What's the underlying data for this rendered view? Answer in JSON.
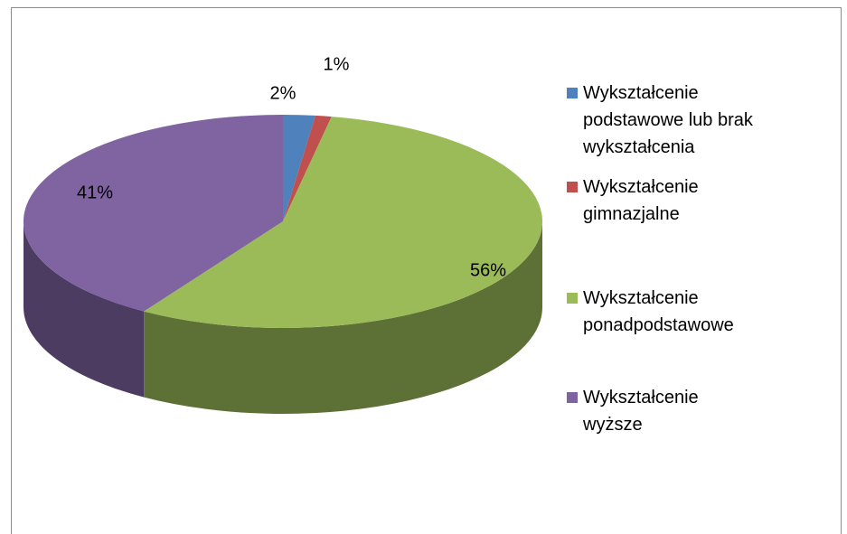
{
  "chart_data": {
    "type": "pie",
    "categories": [
      "Wykształcenie podstawowe lub brak wykształcenia",
      "Wykształcenie gimnazjalne",
      "Wykształcenie ponadpodstawowe",
      "Wykształcenie wyższe"
    ],
    "values": [
      2,
      1,
      56,
      41
    ],
    "value_labels": [
      "2%",
      "1%",
      "56%",
      "41%"
    ],
    "colors": [
      "#4f81bd",
      "#c0504d",
      "#9bbb59",
      "#8064a2"
    ],
    "legend": "right"
  }
}
